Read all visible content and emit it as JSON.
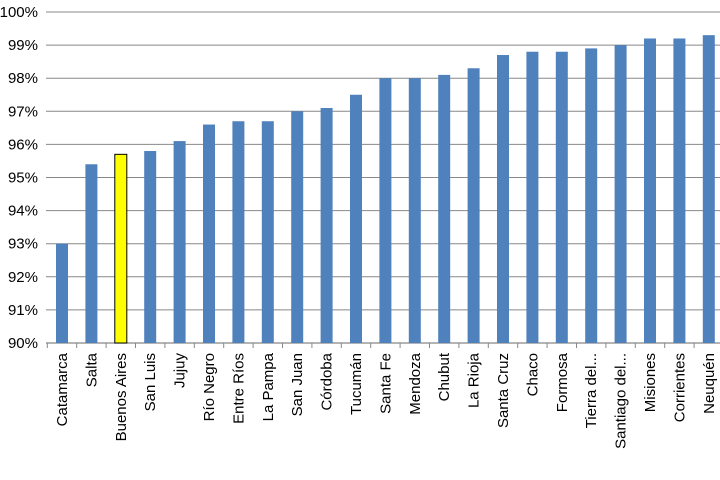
{
  "chart_data": {
    "type": "bar",
    "title": "",
    "xlabel": "",
    "ylabel": "",
    "ylim": [
      90,
      100
    ],
    "y_ticks": [
      "90%",
      "91%",
      "92%",
      "93%",
      "94%",
      "95%",
      "96%",
      "97%",
      "98%",
      "99%",
      "100%"
    ],
    "grid": true,
    "categories": [
      "Catamarca",
      "Salta",
      "Buenos Aires",
      "San Luis",
      "Jujuy",
      "Río Negro",
      "Entre Ríos",
      "La Pampa",
      "San Juan",
      "Córdoba",
      "Tucumán",
      "Santa Fe",
      "Mendoza",
      "Chubut",
      "La Rioja",
      "Santa Cruz",
      "Chaco",
      "Formosa",
      "Tierra del...",
      "Santiago del...",
      "Misiones",
      "Corrientes",
      "Neuquén"
    ],
    "values": [
      93.0,
      95.4,
      95.7,
      95.8,
      96.1,
      96.6,
      96.7,
      96.7,
      97.0,
      97.1,
      97.5,
      98.0,
      98.0,
      98.1,
      98.3,
      98.7,
      98.8,
      98.8,
      98.9,
      99.0,
      99.2,
      99.2,
      99.3
    ],
    "highlight": "Buenos Aires",
    "colors": {
      "bar": "#4f81bd",
      "highlight": "#ffff00",
      "grid": "#888888"
    }
  }
}
